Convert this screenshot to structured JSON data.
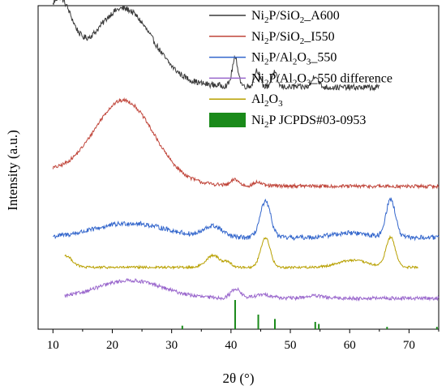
{
  "chart_data": {
    "type": "line",
    "title": "",
    "xlabel": "2θ (°)",
    "ylabel": "Intensity (a.u.)",
    "xlim": [
      7.5,
      75
    ],
    "xticks": [
      "10",
      "20",
      "30",
      "40",
      "50",
      "60",
      "70"
    ],
    "grid": false,
    "legend_position": "top-right",
    "series": [
      {
        "name_parts": [
          [
            "Ni",
            false
          ],
          [
            "2",
            true
          ],
          [
            "P/SiO",
            false
          ],
          [
            "2",
            true
          ],
          [
            "_A600",
            false
          ]
        ],
        "color": "#3a3a3a",
        "offset": 18.0,
        "base": 0.1,
        "noise": 0.25,
        "x_range": [
          10,
          65
        ],
        "features": [
          [
            11.0,
            2.2,
            5.5
          ],
          [
            22.0,
            4.8,
            6.0
          ],
          [
            40.7,
            0.5,
            2.3
          ],
          [
            44.4,
            0.45,
            1.4
          ],
          [
            47.3,
            0.45,
            1.2
          ],
          [
            54.2,
            0.5,
            1.0
          ]
        ],
        "tail": 1.8
      },
      {
        "name_parts": [
          [
            "Ni",
            false
          ],
          [
            "2",
            true
          ],
          [
            "P/SiO",
            false
          ],
          [
            "2",
            true
          ],
          [
            "_I550",
            false
          ]
        ],
        "color": "#c0453a",
        "offset": 9.8,
        "base": 0.0,
        "noise": 0.15,
        "x_range": [
          10,
          75
        ],
        "features": [
          [
            22.0,
            5.0,
            6.8
          ],
          [
            40.7,
            0.6,
            0.5
          ],
          [
            44.5,
            0.6,
            0.3
          ]
        ],
        "tail": 1.2
      },
      {
        "name_parts": [
          [
            "Ni",
            false
          ],
          [
            "2",
            true
          ],
          [
            "P/Al",
            false
          ],
          [
            "2",
            true
          ],
          [
            "O",
            false
          ],
          [
            "3",
            true
          ],
          [
            "_550",
            false
          ]
        ],
        "color": "#3366cc",
        "offset": 5.5,
        "base": 0.0,
        "noise": 0.2,
        "x_range": [
          10,
          75
        ],
        "features": [
          [
            23.0,
            6.0,
            1.2
          ],
          [
            37.0,
            1.5,
            0.9
          ],
          [
            45.8,
            0.9,
            3.0
          ],
          [
            66.9,
            0.8,
            3.2
          ],
          [
            60.0,
            3.0,
            0.4
          ]
        ],
        "tail": 0
      },
      {
        "name_parts": [
          [
            "Ni",
            false
          ],
          [
            "2",
            true
          ],
          [
            "P/Al",
            false
          ],
          [
            "2",
            true
          ],
          [
            "O",
            false
          ],
          [
            "3",
            true
          ],
          [
            "_550 difference",
            false
          ]
        ],
        "color": "#9966cc",
        "offset": 0.4,
        "base": 0.0,
        "noise": 0.15,
        "x_range": [
          12,
          75
        ],
        "features": [
          [
            23.0,
            5.5,
            1.5
          ],
          [
            40.8,
            0.8,
            0.8
          ],
          [
            45.5,
            1.5,
            0.3
          ],
          [
            54.0,
            1.5,
            0.2
          ]
        ],
        "tail": 0
      },
      {
        "name_parts": [
          [
            "Al",
            false
          ],
          [
            "2",
            true
          ],
          [
            "O",
            false
          ],
          [
            "3",
            true
          ]
        ],
        "color": "#b8a000",
        "offset": 3.0,
        "base": 0.0,
        "noise": 0.1,
        "x_range": [
          12,
          71.5
        ],
        "features": [
          [
            12.0,
            1.2,
            1.0
          ],
          [
            37.0,
            1.2,
            1.0
          ],
          [
            39.5,
            0.6,
            0.4
          ],
          [
            45.8,
            0.8,
            2.5
          ],
          [
            60.5,
            2.5,
            0.6
          ],
          [
            66.9,
            0.8,
            2.5
          ]
        ],
        "tail": 0
      }
    ],
    "reference": {
      "name_parts": [
        [
          "Ni",
          false
        ],
        [
          "2",
          true
        ],
        [
          "P JCPDS#03-0953",
          false
        ]
      ],
      "color": "#1a8a1a",
      "peaks": [
        [
          31.8,
          0.12
        ],
        [
          40.7,
          1.0
        ],
        [
          44.6,
          0.5
        ],
        [
          47.4,
          0.35
        ],
        [
          54.2,
          0.25
        ],
        [
          54.8,
          0.18
        ],
        [
          66.3,
          0.08
        ],
        [
          74.7,
          0.08
        ]
      ]
    }
  }
}
